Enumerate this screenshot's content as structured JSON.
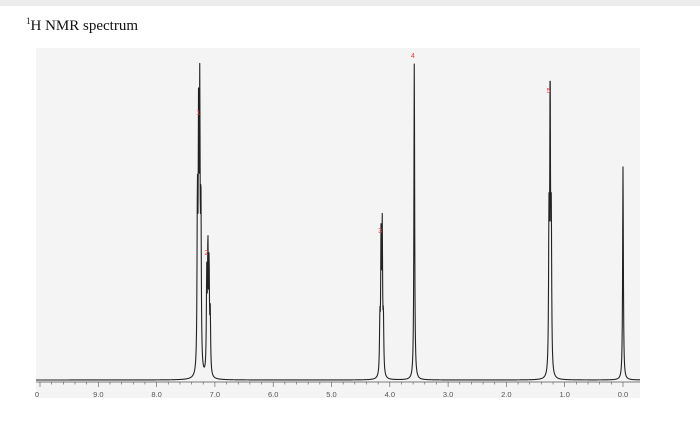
{
  "title": {
    "superscript": "1",
    "text": "H NMR spectrum"
  },
  "colors": {
    "trace": "#222222",
    "peak_label": "#e23b3b",
    "plot_background": "#f4f4f4",
    "axis": "#555555"
  },
  "chart_data": {
    "type": "line",
    "title": "1H NMR spectrum",
    "xlabel": "",
    "ylabel": "",
    "xlim": [
      10.0,
      -0.2
    ],
    "x_reversed": true,
    "ylim": [
      0,
      1.0
    ],
    "grid": false,
    "x_ticks": [
      "0",
      "9.0",
      "8.0",
      "7.0",
      "6.0",
      "5.0",
      "4.0",
      "3.0",
      "2.0",
      "1.0",
      "0.0"
    ],
    "peaks": [
      {
        "label": "1",
        "shift": 7.26,
        "intensity": 0.82
      },
      {
        "label": "2",
        "shift": 7.12,
        "intensity": 0.38
      },
      {
        "label": "3",
        "shift": 4.14,
        "intensity": 0.45
      },
      {
        "label": "4",
        "shift": 3.58,
        "intensity": 1.0
      },
      {
        "label": "5",
        "shift": 1.25,
        "intensity": 0.89
      },
      {
        "label": "",
        "shift": 0.0,
        "intensity": 0.67
      }
    ],
    "lines": [
      {
        "shift": 7.3,
        "intensity": 0.52
      },
      {
        "shift": 7.28,
        "intensity": 0.76
      },
      {
        "shift": 7.26,
        "intensity": 0.82
      },
      {
        "shift": 7.24,
        "intensity": 0.5
      },
      {
        "shift": 7.14,
        "intensity": 0.3
      },
      {
        "shift": 7.12,
        "intensity": 0.38
      },
      {
        "shift": 7.1,
        "intensity": 0.32
      },
      {
        "shift": 7.08,
        "intensity": 0.18
      },
      {
        "shift": 4.17,
        "intensity": 0.16
      },
      {
        "shift": 4.15,
        "intensity": 0.42
      },
      {
        "shift": 4.13,
        "intensity": 0.45
      },
      {
        "shift": 4.11,
        "intensity": 0.16
      },
      {
        "shift": 3.58,
        "intensity": 1.0
      },
      {
        "shift": 1.27,
        "intensity": 0.46
      },
      {
        "shift": 1.25,
        "intensity": 0.89
      },
      {
        "shift": 1.23,
        "intensity": 0.46
      },
      {
        "shift": 0.0,
        "intensity": 0.67
      }
    ]
  }
}
